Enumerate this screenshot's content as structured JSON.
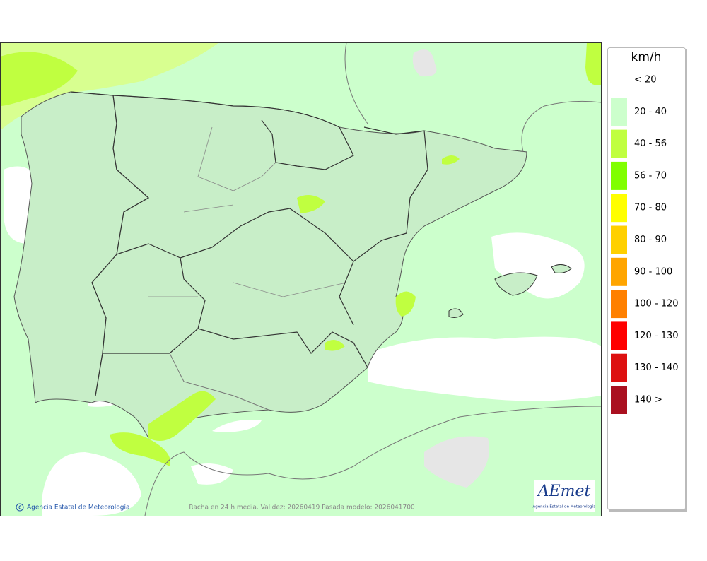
{
  "legend": {
    "title": "km/h",
    "items": [
      {
        "label": "< 20",
        "color": "#ffffff"
      },
      {
        "label": "20 - 40",
        "color": "#ccffcc"
      },
      {
        "label": "40 - 56",
        "color": "#c0ff40"
      },
      {
        "label": "56 - 70",
        "color": "#80ff00"
      },
      {
        "label": "70 - 80",
        "color": "#ffff00"
      },
      {
        "label": "80 - 90",
        "color": "#ffd000"
      },
      {
        "label": "90 - 100",
        "color": "#ffa500"
      },
      {
        "label": "100 - 120",
        "color": "#ff8000"
      },
      {
        "label": "120 - 130",
        "color": "#ff0000"
      },
      {
        "label": "130 - 140",
        "color": "#dd1010"
      },
      {
        "label": "140 >",
        "color": "#aa1020"
      }
    ]
  },
  "footer": {
    "credit": "Agencia Estatal de Meteorología",
    "caption": "Racha en 24 h media. Validez: 20260419 Pasada modelo: 2026041700"
  },
  "logo": {
    "name": "AEmet",
    "subtitle": "Agencia Estatal de Meteorología"
  }
}
